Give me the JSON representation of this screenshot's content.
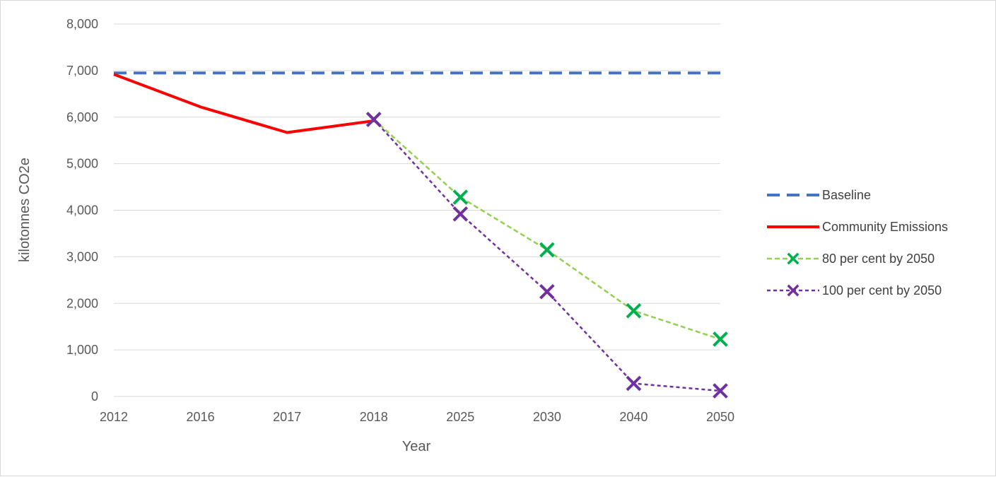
{
  "chart_data": {
    "type": "line",
    "categories": [
      "2012",
      "2016",
      "2017",
      "2018",
      "2025",
      "2030",
      "2040",
      "2050"
    ],
    "xlabel": "Year",
    "ylabel": "kilotonnes CO2e",
    "ylim": [
      0,
      8000
    ],
    "yticks": [
      0,
      1000,
      2000,
      3000,
      4000,
      5000,
      6000,
      7000,
      8000
    ],
    "ytick_labels": [
      "0",
      "1,000",
      "2,000",
      "3,000",
      "4,000",
      "5,000",
      "6,000",
      "7,000",
      "8,000"
    ],
    "grid": true,
    "legend_position": "right",
    "series": [
      {
        "name": "Baseline",
        "style": "dashed",
        "marker": "none",
        "color": "#4472C4",
        "values": [
          6950,
          6950,
          6950,
          6950,
          6950,
          6950,
          6950,
          6950
        ]
      },
      {
        "name": "Community Emissions",
        "style": "solid",
        "marker": "none",
        "color": "#FF0000",
        "values": [
          6920,
          6220,
          5670,
          5920,
          null,
          null,
          null,
          null
        ]
      },
      {
        "name": "80 per cent by 2050",
        "style": "dashed",
        "marker": "x",
        "color": "#92D050",
        "marker_color": "#00B050",
        "values": [
          null,
          null,
          null,
          5950,
          4280,
          3150,
          1840,
          1230
        ]
      },
      {
        "name": "100 per cent by 2050",
        "style": "dotted",
        "marker": "x",
        "color": "#7030A0",
        "marker_color": "#7030A0",
        "values": [
          null,
          null,
          null,
          5950,
          3920,
          2250,
          280,
          120
        ]
      }
    ]
  }
}
